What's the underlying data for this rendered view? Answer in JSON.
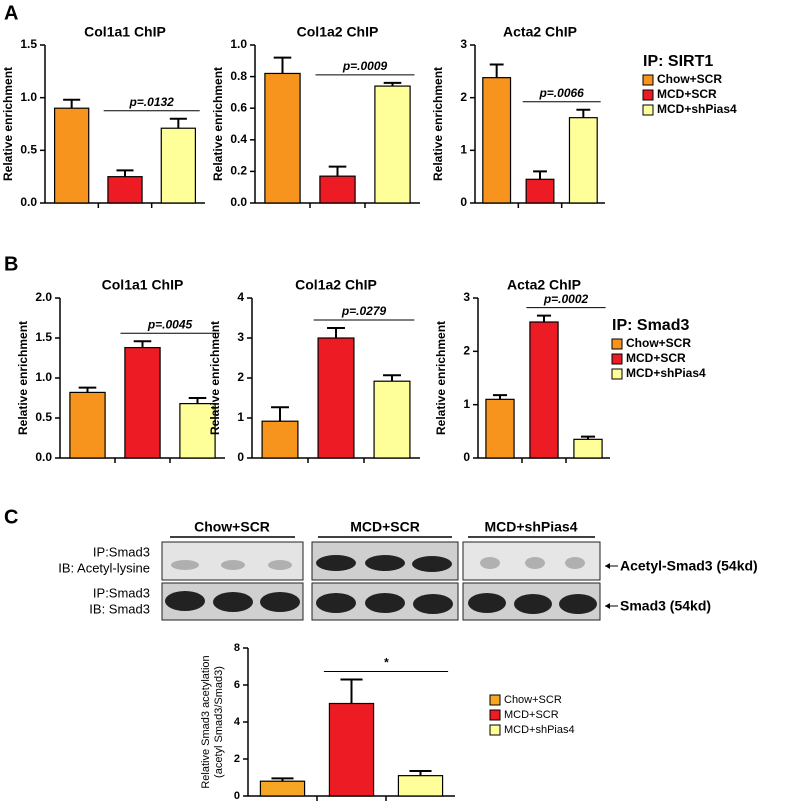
{
  "panel_labels": [
    "A",
    "B",
    "C"
  ],
  "blot": {
    "groups": [
      "Chow+SCR",
      "MCD+SCR",
      "MCD+shPias4"
    ],
    "rows": [
      {
        "label": [
          "IP:Smad3",
          "IB: Acetyl-lysine"
        ],
        "target": "Acetyl-Smad3 (54kd)"
      },
      {
        "label": [
          "IP:Smad3",
          "IB: Smad3"
        ],
        "target": "Smad3 (54kd)"
      }
    ]
  },
  "chart_data": [
    {
      "type": "bar",
      "title": "Col1a1 ChIP",
      "ylabel": "Relative enrichment",
      "categories": [
        "Chow+SCR",
        "MCD+SCR",
        "MCD+shPias4"
      ],
      "colors": [
        "#f7941d",
        "#ed1c24",
        "#ffff99"
      ],
      "values": [
        0.9,
        0.25,
        0.71
      ],
      "errors": [
        0.08,
        0.06,
        0.09
      ],
      "annotation": "p=.0132",
      "ylim": [
        0,
        1.5
      ],
      "yticks": [
        {
          "value": 0,
          "label": "0.0"
        },
        0.5,
        {
          "value": 1,
          "label": "1.0"
        },
        1.5
      ]
    },
    {
      "type": "bar",
      "title": "Col1a2 ChIP",
      "ylabel": "Relative enrichment",
      "categories": [
        "Chow+SCR",
        "MCD+SCR",
        "MCD+shPias4"
      ],
      "colors": [
        "#f7941d",
        "#ed1c24",
        "#ffff99"
      ],
      "values": [
        0.82,
        0.17,
        0.74
      ],
      "errors": [
        0.1,
        0.06,
        0.02
      ],
      "annotation": "p=.0009",
      "ylim": [
        0,
        1
      ],
      "yticks": [
        {
          "value": 0,
          "label": "0.0"
        },
        0.2,
        0.4,
        0.6,
        0.8,
        {
          "value": 1,
          "label": "1.0"
        }
      ]
    },
    {
      "type": "bar",
      "title": "Acta2 ChIP",
      "ylabel": "Relative enrichment",
      "categories": [
        "Chow+SCR",
        "MCD+SCR",
        "MCD+shPias4"
      ],
      "colors": [
        "#f7941d",
        "#ed1c24",
        "#ffff99"
      ],
      "values": [
        2.38,
        0.45,
        1.62
      ],
      "errors": [
        0.25,
        0.15,
        0.15
      ],
      "annotation": "p=.0066",
      "ylim": [
        0,
        3
      ],
      "yticks": [
        0,
        1,
        2,
        3
      ],
      "legend": true,
      "legend_title": "IP: SIRT1"
    },
    {
      "type": "bar",
      "title": "Col1a1 ChIP",
      "ylabel": "Relative enrichment",
      "categories": [
        "Chow+SCR",
        "MCD+SCR",
        "MCD+shPias4"
      ],
      "colors": [
        "#f7941d",
        "#ed1c24",
        "#ffff99"
      ],
      "values": [
        0.82,
        1.38,
        0.68
      ],
      "errors": [
        0.06,
        0.08,
        0.07
      ],
      "annotation": "p=.0045",
      "ylim": [
        0,
        2
      ],
      "yticks": [
        {
          "value": 0,
          "label": "0.0"
        },
        0.5,
        {
          "value": 1,
          "label": "1.0"
        },
        1.5,
        {
          "value": 2,
          "label": "2.0"
        }
      ]
    },
    {
      "type": "bar",
      "title": "Col1a2 ChIP",
      "ylabel": "Relative enrichment",
      "categories": [
        "Chow+SCR",
        "MCD+SCR",
        "MCD+shPias4"
      ],
      "colors": [
        "#f7941d",
        "#ed1c24",
        "#ffff99"
      ],
      "values": [
        0.92,
        3.0,
        1.92
      ],
      "errors": [
        0.35,
        0.25,
        0.15
      ],
      "annotation": "p=.0279",
      "ylim": [
        0,
        4
      ],
      "yticks": [
        0,
        1,
        2,
        3,
        4
      ]
    },
    {
      "type": "bar",
      "title": "Acta2 ChIP",
      "ylabel": "Relative enrichment",
      "categories": [
        "Chow+SCR",
        "MCD+SCR",
        "MCD+shPias4"
      ],
      "colors": [
        "#f7941d",
        "#ed1c24",
        "#ffff99"
      ],
      "values": [
        1.1,
        2.55,
        0.35
      ],
      "errors": [
        0.08,
        0.12,
        0.05
      ],
      "annotation": "p=.0002",
      "ylim": [
        0,
        3
      ],
      "yticks": [
        0,
        1,
        2,
        3
      ],
      "legend": true,
      "legend_title": "IP: Smad3"
    },
    {
      "type": "bar",
      "ylabel": [
        "Relative Smad3 acetylation",
        "(acetyl Smad3/Smad3)"
      ],
      "categories": [
        "Chow+SCR",
        "MCD+SCR",
        "MCD+shPias4"
      ],
      "colors": [
        "#f5a623",
        "#ed1c24",
        "#ffff99"
      ],
      "values": [
        0.8,
        5.0,
        1.1
      ],
      "errors": [
        0.15,
        1.3,
        0.25
      ],
      "annotation": "*",
      "ylim": [
        0,
        8
      ],
      "yticks": [
        0,
        2,
        4,
        6,
        8
      ],
      "legend": true
    }
  ]
}
